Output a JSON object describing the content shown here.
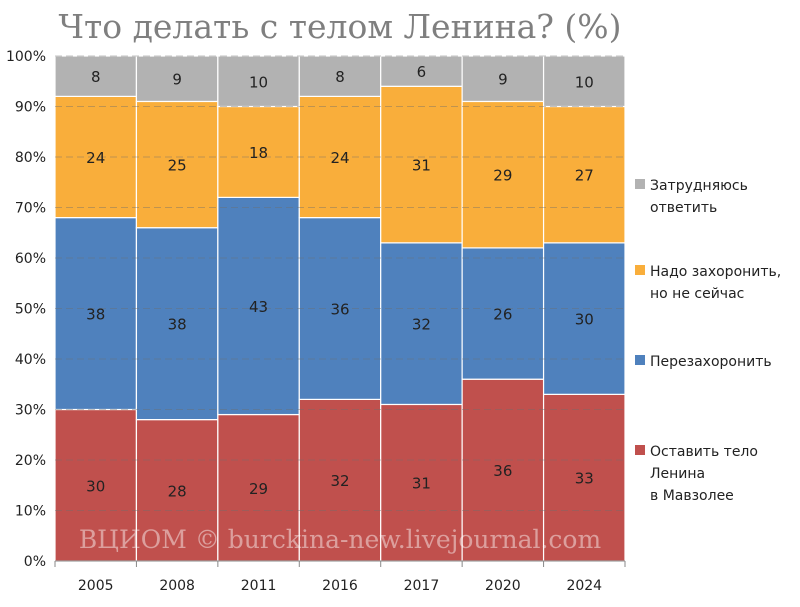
{
  "chart_data": {
    "type": "bar",
    "stacked": "percent",
    "title": "Что делать с телом Ленина? (%)",
    "categories": [
      "2005",
      "2008",
      "2011",
      "2016",
      "2017",
      "2020",
      "2024"
    ],
    "series": [
      {
        "name": "Оставить тело Ленина в Мавзолее",
        "legend_lines": [
          "Оставить тело",
          "Ленина",
          "в Мавзолее"
        ],
        "color": "#c0504d",
        "values": [
          30,
          28,
          29,
          32,
          31,
          36,
          33
        ]
      },
      {
        "name": "Перезахоронить",
        "legend_lines": [
          "Перезахоронить"
        ],
        "color": "#4f81bd",
        "values": [
          38,
          38,
          43,
          36,
          32,
          26,
          30
        ]
      },
      {
        "name": "Надо захоронить, но не сейчас",
        "legend_lines": [
          "Надо захоронить,",
          "но не сейчас"
        ],
        "color": "#f9ae3b",
        "values": [
          24,
          25,
          18,
          24,
          31,
          29,
          27
        ]
      },
      {
        "name": "Затрудняюсь ответить",
        "legend_lines": [
          "Затрудняюсь",
          "ответить"
        ],
        "color": "#b2b2b2",
        "values": [
          8,
          9,
          10,
          8,
          6,
          9,
          10
        ]
      }
    ],
    "ylim": [
      0,
      100
    ],
    "yticks": [
      "0%",
      "10%",
      "20%",
      "30%",
      "40%",
      "50%",
      "60%",
      "70%",
      "80%",
      "90%",
      "100%"
    ],
    "grid": true,
    "legend_position": "right",
    "watermark": "ВЦИОМ © burckina-new.livejournal.com"
  }
}
